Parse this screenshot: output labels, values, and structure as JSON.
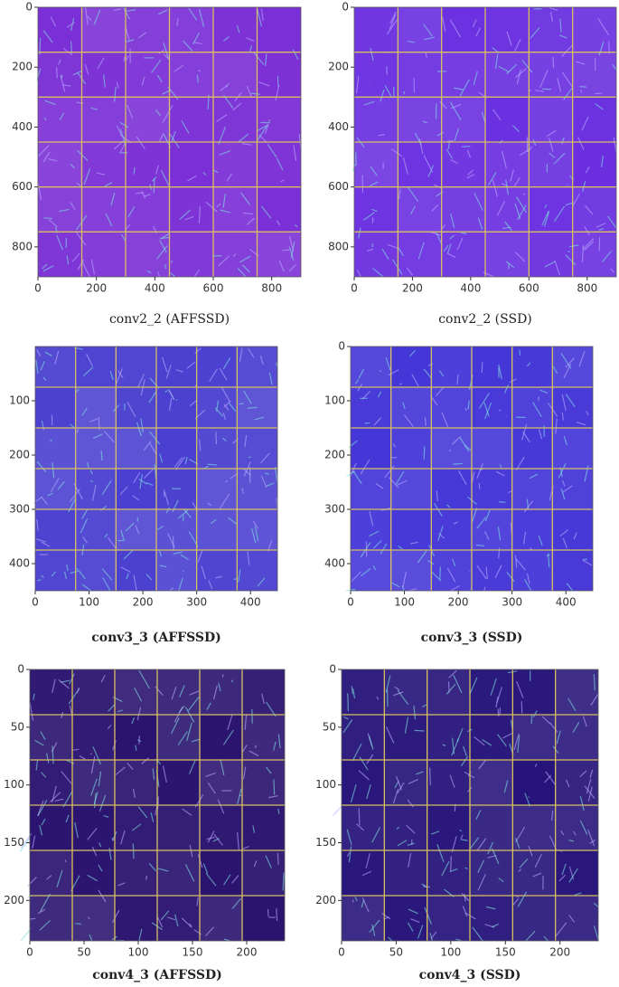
{
  "chart_data": [
    {
      "type": "image",
      "title": "conv2_2 (AFFSSD)",
      "color": "#7b2fd6",
      "xlim": [
        0,
        900
      ],
      "ylim": [
        900,
        0
      ],
      "xticks": [
        0,
        200,
        400,
        600,
        800
      ],
      "yticks": [
        0,
        200,
        400,
        600,
        800
      ]
    },
    {
      "type": "image",
      "title": "conv2_2 (SSD)",
      "color": "#6a2ee0",
      "xlim": [
        0,
        900
      ],
      "ylim": [
        900,
        0
      ],
      "xticks": [
        0,
        200,
        400,
        600,
        800
      ],
      "yticks": [
        0,
        200,
        400,
        600,
        800
      ]
    },
    {
      "type": "image",
      "title": "conv3_3 (AFFSSD)",
      "color": "#4a3fd0",
      "xlim": [
        0,
        450
      ],
      "ylim": [
        450,
        0
      ],
      "xticks": [
        0,
        100,
        200,
        300,
        400
      ],
      "yticks": [
        100,
        200,
        300,
        400
      ]
    },
    {
      "type": "image",
      "title": "conv3_3 (SSD)",
      "color": "#4536d8",
      "xlim": [
        0,
        450
      ],
      "ylim": [
        450,
        0
      ],
      "xticks": [
        0,
        100,
        200,
        300,
        400
      ],
      "yticks": [
        0,
        100,
        200,
        300,
        400
      ]
    },
    {
      "type": "image",
      "title": "conv4_3 (AFFSSD)",
      "color": "#2b1470",
      "xlim": [
        0,
        235
      ],
      "ylim": [
        235,
        0
      ],
      "xticks": [
        0,
        50,
        100,
        150,
        200
      ],
      "yticks": [
        0,
        50,
        100,
        150,
        200
      ]
    },
    {
      "type": "image",
      "title": "conv4_3 (SSD)",
      "color": "#26147a",
      "xlim": [
        0,
        235
      ],
      "ylim": [
        235,
        0
      ],
      "xticks": [
        0,
        50,
        100,
        150,
        200
      ],
      "yticks": [
        0,
        50,
        100,
        150,
        200
      ]
    }
  ]
}
